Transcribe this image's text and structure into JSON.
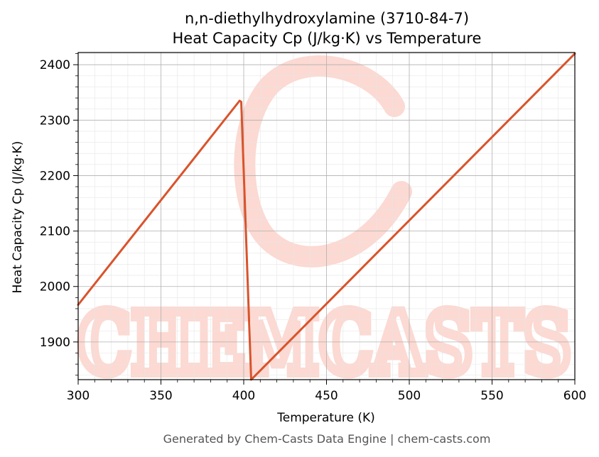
{
  "footer": "Generated by Chem-Casts Data Engine | chem-casts.com",
  "watermark": "CHEMCASTS",
  "colors": {
    "line": "#d9532b",
    "watermark": "#fcd9d2",
    "grid_major": "#b0b0b0",
    "grid_minor": "#e6e6e6"
  },
  "chart_data": {
    "type": "line",
    "title": "n,n-diethylhydroxylamine (3710-84-7)",
    "subtitle": "Heat Capacity Cp (J/kg·K) vs Temperature",
    "xlabel": "Temperature (K)",
    "ylabel": "Heat Capacity Cp (J/kg·K)",
    "xlim": [
      300,
      600
    ],
    "ylim": [
      1832,
      2422
    ],
    "xticks": [
      300,
      350,
      400,
      450,
      500,
      550,
      600
    ],
    "yticks": [
      1900,
      2000,
      2100,
      2200,
      2300,
      2400
    ],
    "grid": true,
    "minor_grid": true,
    "legend": "none",
    "series": [
      {
        "x": [
          300,
          397.5,
          398.5,
          404.5,
          600
        ],
        "y": [
          1967,
          2335,
          2333,
          1832,
          2420
        ]
      }
    ]
  }
}
